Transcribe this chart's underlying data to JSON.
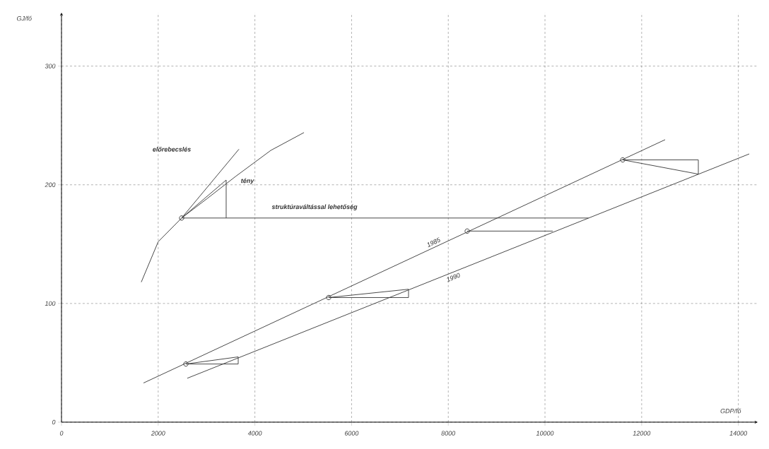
{
  "chart_data": {
    "type": "line",
    "xlabel": "GDP/fő",
    "ylabel": "GJ/fő",
    "xlim": [
      0,
      14400
    ],
    "ylim": [
      0,
      345
    ],
    "xticks": [
      0,
      2000,
      4000,
      6000,
      8000,
      10000,
      12000,
      14000
    ],
    "yticks": [
      0,
      100,
      200,
      300
    ],
    "grid": true,
    "series": [
      {
        "color": "#333333",
        "x": [
          1650,
          2000,
          2485,
          3000,
          3600,
          4330,
          5015
        ],
        "values": [
          118,
          152,
          172,
          188,
          207,
          229,
          244
        ]
      },
      {
        "name": "1985",
        "color": "#333333",
        "x": [
          1696,
          12485
        ],
        "values": [
          33,
          238
        ]
      },
      {
        "name": "1990",
        "color": "#333333",
        "x": [
          2602,
          14225
        ],
        "values": [
          37,
          226
        ]
      },
      {
        "color": "#333333",
        "x": [
          2485,
          3670
        ],
        "values": [
          172,
          230
        ]
      },
      {
        "color": "#333333",
        "x": [
          2485,
          3406
        ],
        "values": [
          172,
          204
        ]
      },
      {
        "color": "#333333",
        "x": [
          3406,
          3406
        ],
        "values": [
          204,
          172
        ]
      },
      {
        "color": "#333333",
        "x": [
          2485,
          10900
        ],
        "values": [
          172,
          172
        ]
      },
      {
        "color": "#333333",
        "x": [
          2573,
          3655
        ],
        "values": [
          49,
          55
        ]
      },
      {
        "color": "#333333",
        "x": [
          2573,
          3655
        ],
        "values": [
          49,
          49
        ]
      },
      {
        "color": "#333333",
        "x": [
          3655,
          3655
        ],
        "values": [
          49,
          55
        ]
      },
      {
        "color": "#333333",
        "x": [
          5526,
          7178
        ],
        "values": [
          105,
          112
        ]
      },
      {
        "color": "#333333",
        "x": [
          5526,
          7178
        ],
        "values": [
          105,
          105
        ]
      },
      {
        "color": "#333333",
        "x": [
          7178,
          7178
        ],
        "values": [
          105,
          112
        ]
      },
      {
        "color": "#333333",
        "x": [
          8392,
          10161
        ],
        "values": [
          161,
          161
        ]
      },
      {
        "color": "#333333",
        "x": [
          11608,
          13172
        ],
        "values": [
          221,
          209
        ]
      },
      {
        "color": "#333333",
        "x": [
          11608,
          13172
        ],
        "values": [
          221,
          221
        ]
      },
      {
        "color": "#333333",
        "x": [
          13172,
          13172
        ],
        "values": [
          221,
          209
        ]
      },
      {
        "type": "scatter",
        "marker": "circle",
        "color": "#333333",
        "x": [
          2485,
          2573,
          5526,
          8392,
          11608
        ],
        "values": [
          172,
          49,
          105,
          161,
          221
        ]
      }
    ],
    "annotations": [
      "előrebecslés",
      "tény",
      "struktúraváltással lehetőség"
    ]
  }
}
